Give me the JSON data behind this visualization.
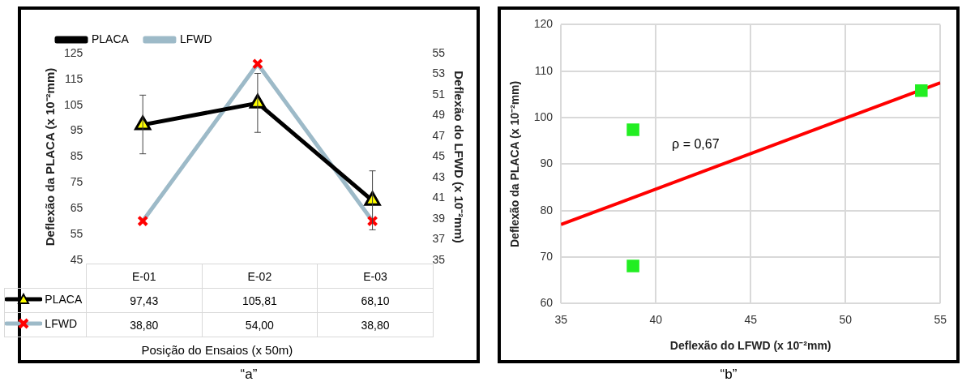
{
  "chart_data": [
    {
      "type": "line",
      "categories": [
        "E-01",
        "E-02",
        "E-03"
      ],
      "xlabel": "Posição do Ensaios (x 50m)",
      "ylabel": "Deflexão da PLACA (x 10⁻²mm)",
      "y2label": "Deflexão do LFWD (x 10⁻²mm)",
      "ylim": [
        45,
        125
      ],
      "yticks": [
        45,
        55,
        65,
        75,
        85,
        95,
        105,
        115,
        125
      ],
      "y2lim": [
        35,
        55
      ],
      "y2ticks": [
        35,
        37,
        39,
        41,
        43,
        45,
        47,
        49,
        51,
        53,
        55
      ],
      "legend": "top left",
      "grid": false,
      "series": [
        {
          "name": "PLACA",
          "color": "#000000",
          "marker": "triangle",
          "values": [
            97.43,
            105.81,
            68.1
          ],
          "errors": [
            [
              86.2,
              108.9
            ],
            [
              94.5,
              117.3
            ],
            [
              56.8,
              79.6
            ]
          ],
          "value_labels": [
            "97,43",
            "105,81",
            "68,10"
          ]
        },
        {
          "name": "LFWD",
          "color": "#9dbac8",
          "marker": "cross",
          "axis": "y2",
          "values": [
            38.8,
            54.0,
            38.8
          ],
          "value_labels": [
            "38,80",
            "54,00",
            "38,80"
          ]
        }
      ],
      "annotations": [
        "“a”"
      ]
    },
    {
      "type": "scatter",
      "xlabel": "Deflexão do LFWD (x 10⁻²mm)",
      "ylabel": "Deflexão da PLACA (x 10⁻²mm)",
      "xlim": [
        35,
        55
      ],
      "xticks": [
        35,
        40,
        45,
        50,
        55
      ],
      "ylim": [
        60,
        120
      ],
      "yticks": [
        60,
        70,
        80,
        90,
        100,
        110,
        120
      ],
      "grid": true,
      "series": [
        {
          "type": "scatter",
          "marker": "square",
          "color": "#22ee22",
          "x": [
            38.8,
            38.8,
            54.0
          ],
          "values": [
            97.4,
            68.1,
            105.8
          ]
        },
        {
          "type": "line",
          "color": "#ff0000",
          "x": [
            35,
            55
          ],
          "values": [
            77,
            107.5
          ]
        }
      ],
      "annotations": [
        "ρ = 0,67",
        "“b”"
      ]
    }
  ]
}
